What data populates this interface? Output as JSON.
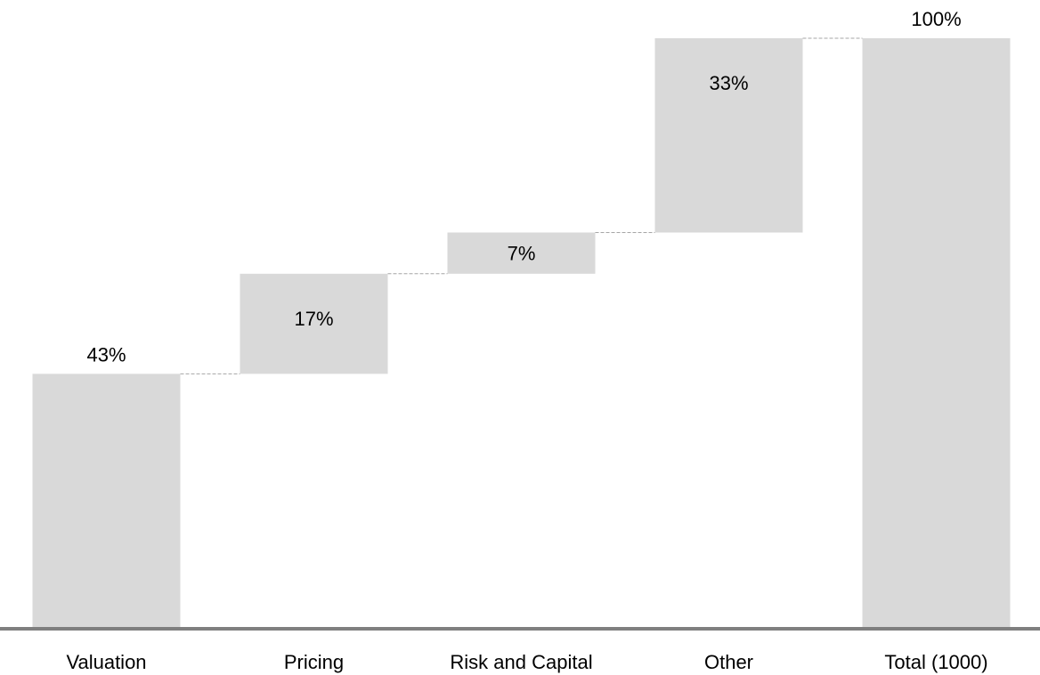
{
  "chart_data": {
    "type": "bar",
    "subtype": "waterfall",
    "categories": [
      "Valuation",
      "Pricing",
      "Risk and Capital",
      "Other",
      "Total (1000)"
    ],
    "values": [
      43,
      17,
      7,
      33,
      100
    ],
    "labels": [
      "43%",
      "17%",
      "7%",
      "33%",
      "100%"
    ],
    "is_total": [
      false,
      false,
      false,
      false,
      true
    ],
    "ylim": [
      0,
      100
    ],
    "grid": false,
    "legend": "none",
    "connectors": "dashed",
    "title": "",
    "xlabel": "",
    "ylabel": ""
  },
  "colors": {
    "bar": "#d9d9d9",
    "axis": "#7f7f7f",
    "connector": "#a6a6a6",
    "text": "#000000"
  }
}
